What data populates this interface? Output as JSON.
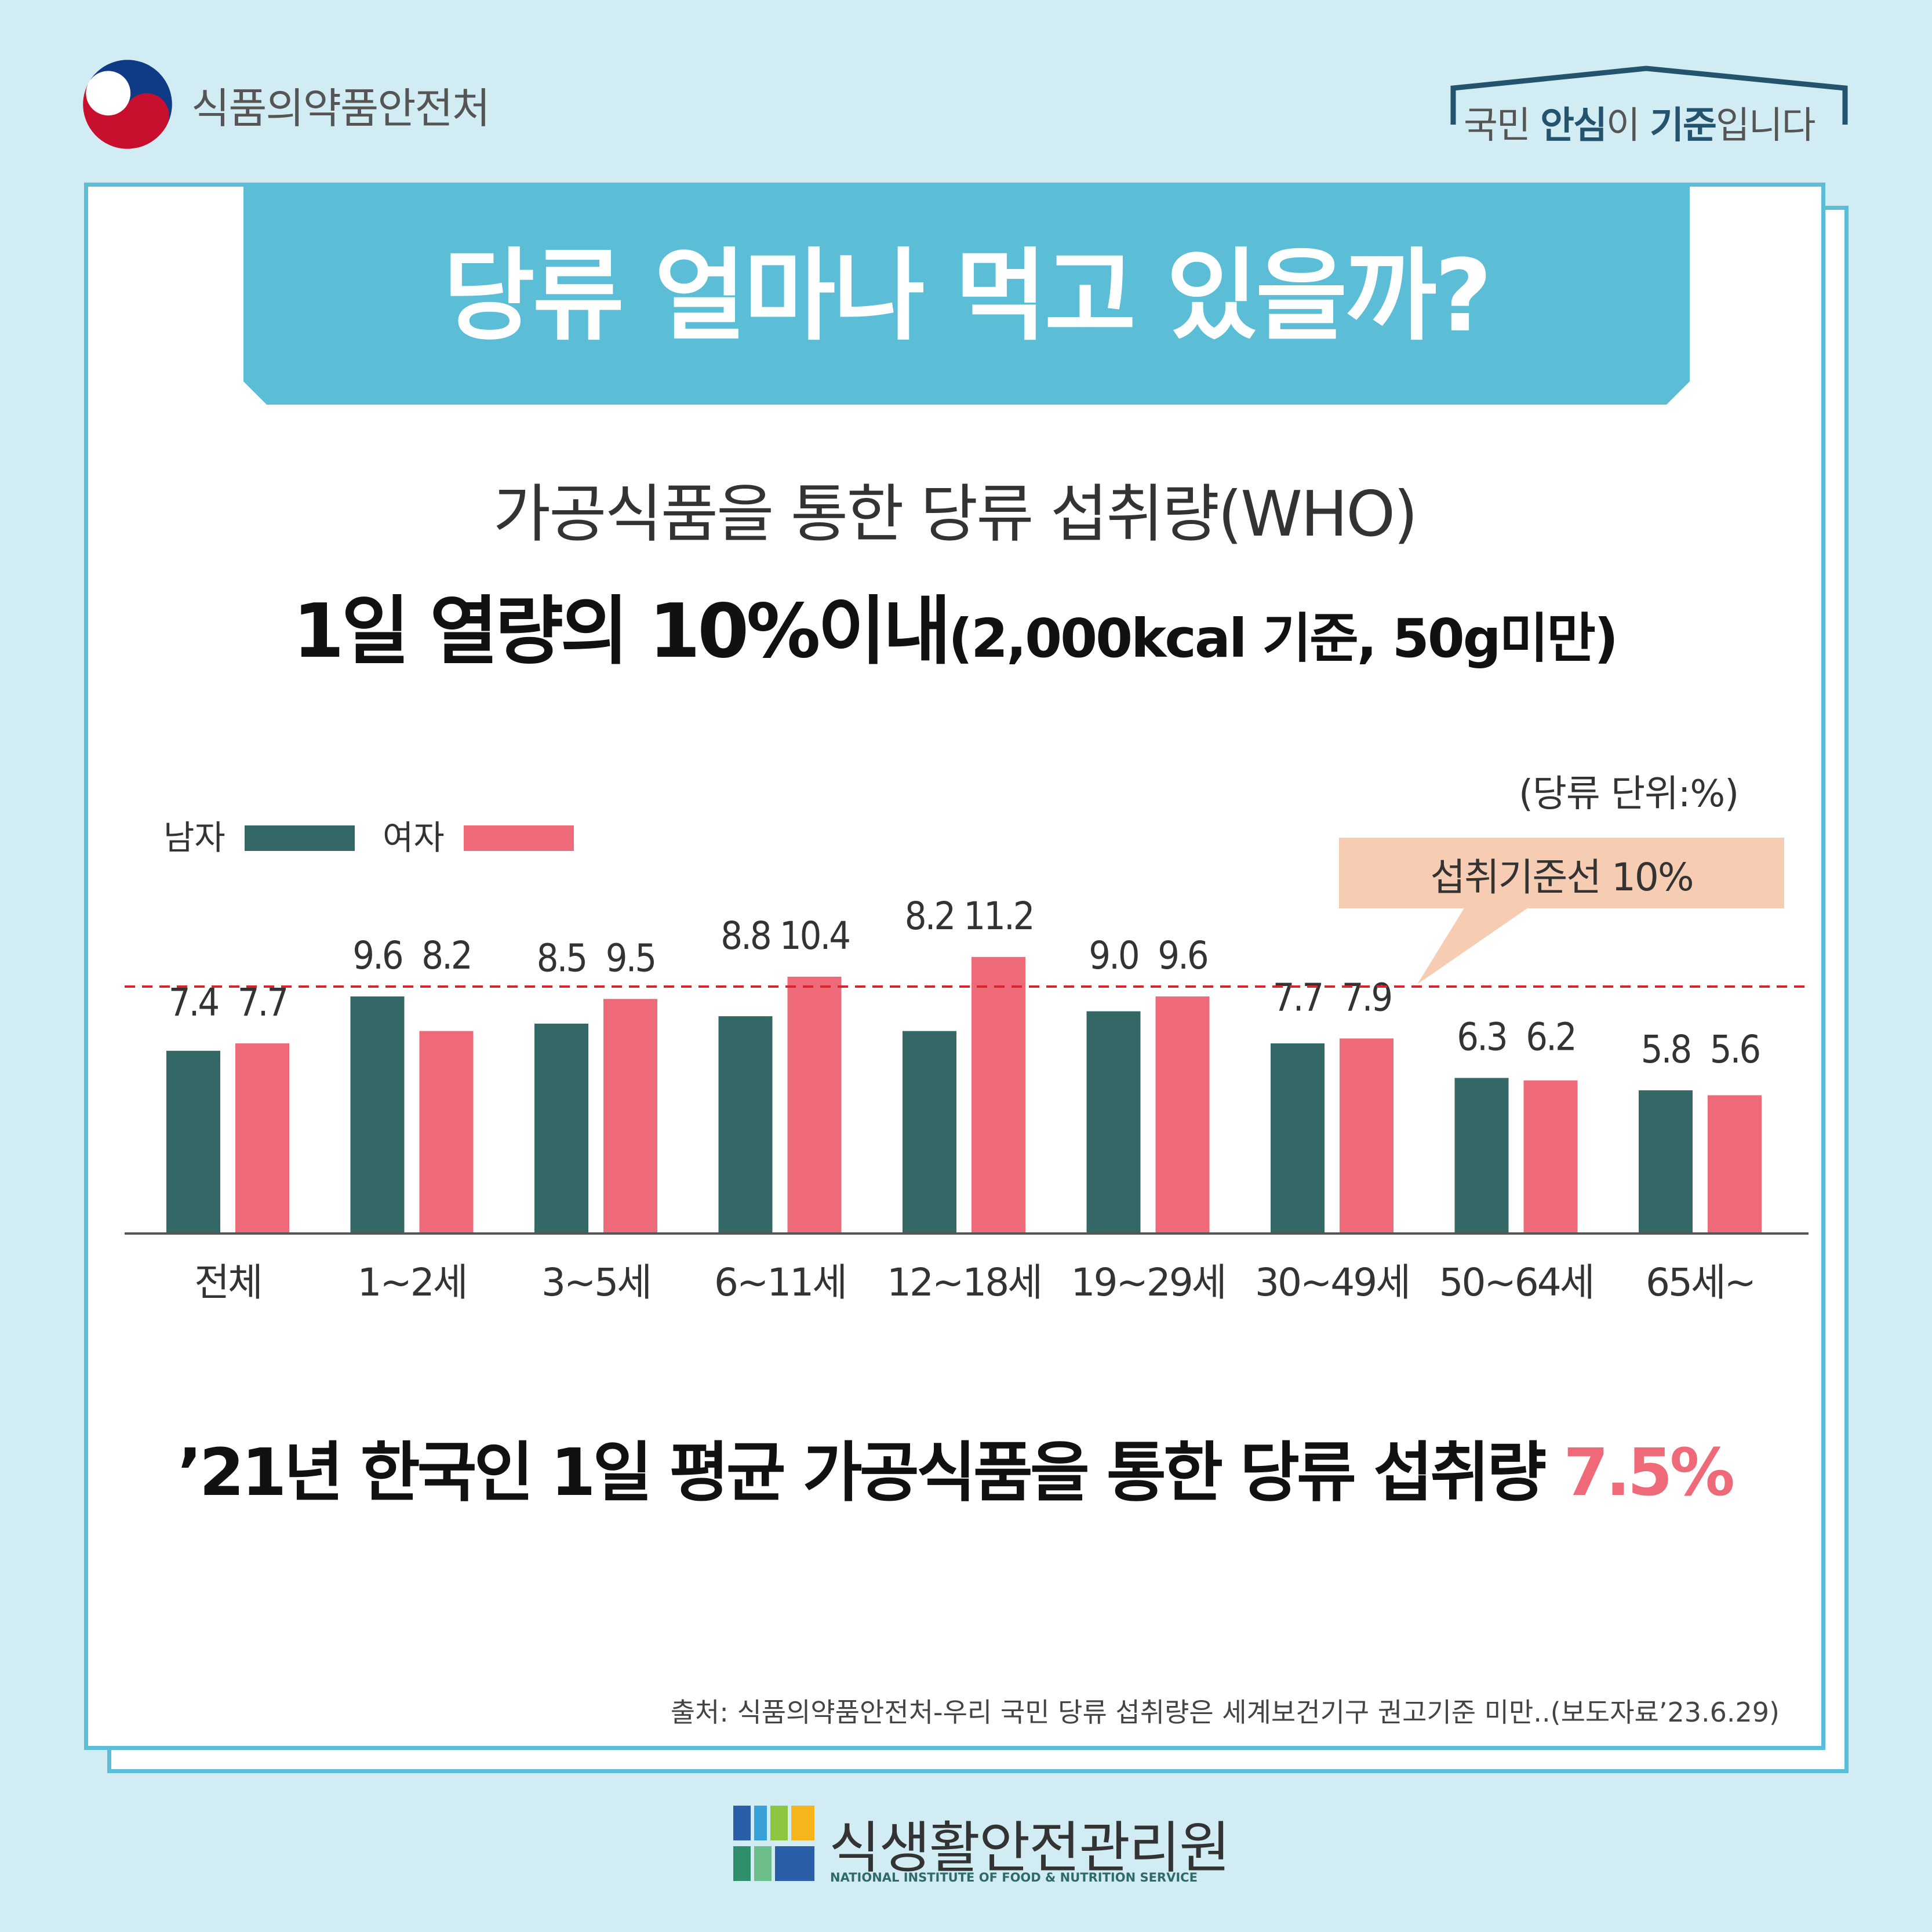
{
  "header": {
    "ministry_name": "식품의약품안전처",
    "slogan_parts": [
      "국민 ",
      "안심",
      "이 ",
      "기준",
      "입니다"
    ]
  },
  "title": "당류 얼마나 먹고 있을까?",
  "subtitle": {
    "line1": "가공식품을 통한 당류 섭취량(WHO)",
    "line2_main": "1일 열량의 10%이내",
    "line2_small": "(2,000kcal 기준, 50g미만)"
  },
  "colors": {
    "male": "#336866",
    "female": "#ee6a78",
    "reference_line": "#d6252c",
    "title_banner": "#5bbdd6",
    "callout": "#f6cdb3"
  },
  "chart_data": {
    "type": "bar",
    "unit_label": "(당류 단위:%)",
    "categories": [
      "전체",
      "1~2세",
      "3~5세",
      "6~11세",
      "12~18세",
      "19~29세",
      "30~49세",
      "50~64세",
      "65세~"
    ],
    "series": [
      {
        "name": "남자",
        "values": [
          7.4,
          9.6,
          8.5,
          8.8,
          8.2,
          9.0,
          7.7,
          6.3,
          5.8
        ],
        "labels": [
          "7.4",
          "9.6",
          "8.5",
          "8.8",
          "8.2",
          "9.0",
          "7.7",
          "6.3",
          "5.8"
        ]
      },
      {
        "name": "여자",
        "values": [
          7.7,
          8.2,
          9.5,
          10.4,
          11.2,
          9.6,
          7.9,
          6.2,
          5.6
        ],
        "labels": [
          "7.7",
          "8.2",
          "9.5",
          "10.4",
          "11.2",
          "9.6",
          "7.9",
          "6.2",
          "5.6"
        ]
      }
    ],
    "reference_line": {
      "value": 10,
      "label": "섭취기준선 10%"
    },
    "ylim": [
      0,
      12
    ],
    "legend_position": "top-left",
    "grid": false
  },
  "summary": {
    "text": "’21년 한국인 1일 평균 가공식품을 통한 당류 섭취량 ",
    "value": "7.5%"
  },
  "source": "출처: 식품의약품안전처-우리 국민 당류 섭취량은 세계보건기구 권고기준 미만..(보도자료’23.6.29)",
  "footer": {
    "org_name": "식생활안전관리원",
    "org_name_en": "NATIONAL INSTITUTE OF FOOD & NUTRITION SERVICE"
  }
}
